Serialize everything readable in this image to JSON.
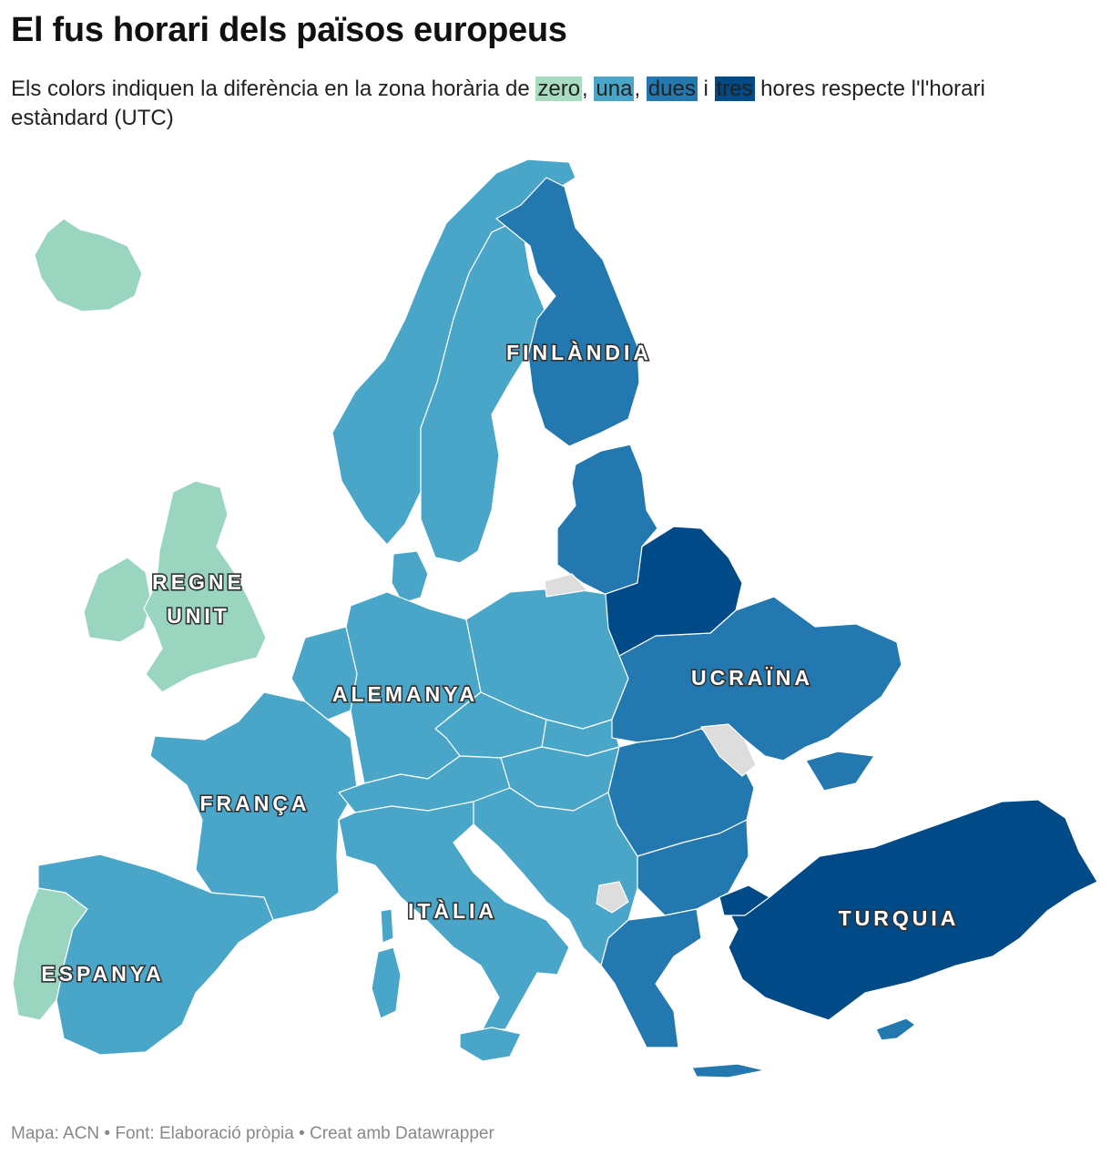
{
  "header": {
    "title": "El fus horari dels països europeus",
    "subtitle_parts": {
      "p1": "Els colors indiquen la diferència en la zona horària de ",
      "zero": "zero",
      "s1": ", ",
      "una": "una",
      "s2": ", ",
      "dues": "dues",
      "s3": " i ",
      "tres": "tres",
      "p2": " hores respecte l'l'horari estàndard (UTC)"
    }
  },
  "legend_colors": {
    "zero": "#9ad5bf",
    "una": "#4aa6c9",
    "dues": "#2378b0",
    "tres": "#004a87",
    "no_data": "#dddddd"
  },
  "map_labels": {
    "finlandia": "FINLÀNDIA",
    "regne_unit_1": "REGNE",
    "regne_unit_2": "UNIT",
    "alemanya": "ALEMANYA",
    "ucraina": "UCRAÏNA",
    "franca": "FRANÇA",
    "italia": "ITÀLIA",
    "turquia": "TURQUIA",
    "espanya": "ESPANYA"
  },
  "footer": {
    "text": "Mapa: ACN • Font: Elaboració pròpia • Creat amb Datawrapper"
  }
}
